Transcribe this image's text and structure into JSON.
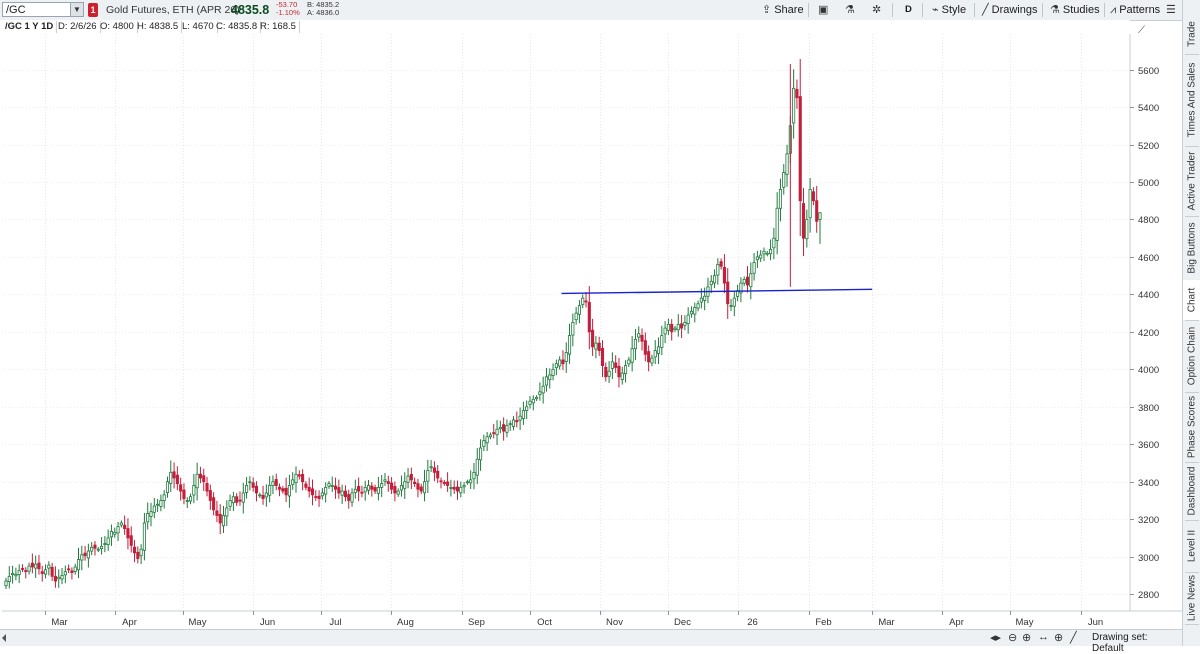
{
  "toolbar": {
    "symbol": "/GC",
    "alert_badge": "1",
    "description": "Gold Futures, ETH (APR 26)",
    "last_price": "4835.8",
    "change_abs": "-53.70",
    "change_pct": "-1.10%",
    "bid": "B: 4835.2",
    "ask": "A: 4836.0",
    "share_label": "Share",
    "aggregation_label": "D",
    "style_label": "Style",
    "drawings_label": "Drawings",
    "studies_label": "Studies",
    "patterns_label": "Patterns"
  },
  "infobar": {
    "title": "/GC 1 Y 1D",
    "date": "D: 2/6/26",
    "open": "O: 4800",
    "high": "H: 4838.5",
    "low": "L: 4670",
    "close": "C: 4835.8",
    "range": "R: 168.5"
  },
  "right_tabs": [
    "Trade",
    "Times And Sales",
    "Active Trader",
    "Big Buttons",
    "Chart",
    "Option Chain",
    "Phase Scores",
    "Dashboard",
    "Level II",
    "Live News"
  ],
  "bottom_bar": {
    "drawing_set": "Drawing set: Default"
  },
  "colors": {
    "up": "#1e7a3c",
    "down": "#c41e3a",
    "trendline": "#1a22cc",
    "grid": "#d9dde2"
  },
  "chart_data": {
    "type": "candlestick",
    "y_ticks": [
      2800,
      3000,
      3200,
      3400,
      3600,
      3800,
      4000,
      4200,
      4400,
      4600,
      4800,
      5000,
      5200,
      5400,
      5600
    ],
    "x_labels": [
      "Mar",
      "Apr",
      "May",
      "Jun",
      "Jul",
      "Aug",
      "Sep",
      "Oct",
      "Nov",
      "Dec",
      "26",
      "Feb",
      "Mar",
      "Apr",
      "May",
      "Jun"
    ],
    "ylim": [
      2710,
      5790
    ],
    "grid": "horizontal and vertical light",
    "trendline": {
      "start": {
        "date": "2025-10-15",
        "price": 4405
      },
      "end": {
        "date": "2026-03-01",
        "price": 4427
      }
    },
    "last_visible_date": "2026-02-06",
    "closes": [
      2870,
      2895,
      2910,
      2905,
      2925,
      2935,
      2920,
      2950,
      2945,
      2960,
      2935,
      2910,
      2930,
      2955,
      2895,
      2870,
      2890,
      2900,
      2920,
      2930,
      2915,
      2945,
      2985,
      3010,
      3005,
      3030,
      3050,
      3045,
      3040,
      3055,
      3070,
      3100,
      3135,
      3130,
      3160,
      3180,
      3150,
      3100,
      3060,
      3020,
      2990,
      3040,
      3180,
      3230,
      3240,
      3270,
      3280,
      3300,
      3330,
      3400,
      3450,
      3420,
      3390,
      3350,
      3310,
      3300,
      3320,
      3380,
      3440,
      3420,
      3400,
      3350,
      3300,
      3250,
      3220,
      3180,
      3220,
      3260,
      3300,
      3320,
      3290,
      3300,
      3340,
      3380,
      3400,
      3370,
      3340,
      3330,
      3310,
      3340,
      3380,
      3400,
      3380,
      3360,
      3350,
      3330,
      3380,
      3410,
      3440,
      3430,
      3400,
      3370,
      3350,
      3330,
      3320,
      3310,
      3340,
      3370,
      3390,
      3380,
      3360,
      3340,
      3350,
      3320,
      3300,
      3340,
      3360,
      3350,
      3340,
      3370,
      3380,
      3360,
      3350,
      3370,
      3390,
      3410,
      3390,
      3360,
      3340,
      3350,
      3380,
      3400,
      3430,
      3410,
      3390,
      3360,
      3350,
      3400,
      3460,
      3480,
      3450,
      3420,
      3400,
      3390,
      3380,
      3370,
      3360,
      3350,
      3370,
      3380,
      3400,
      3410,
      3450,
      3520,
      3580,
      3620,
      3640,
      3650,
      3660,
      3680,
      3690,
      3670,
      3700,
      3710,
      3730,
      3720,
      3750,
      3780,
      3800,
      3830,
      3840,
      3850,
      3880,
      3910,
      3960,
      3970,
      4000,
      4030,
      4050,
      4030,
      4090,
      4180,
      4250,
      4300,
      4340,
      4380,
      4360,
      4200,
      4120,
      4140,
      4100,
      4020,
      3960,
      3990,
      4040,
      4010,
      3960,
      3980,
      4020,
      4050,
      4110,
      4160,
      4190,
      4150,
      4080,
      4040,
      4060,
      4100,
      4120,
      4180,
      4220,
      4240,
      4200,
      4220,
      4240,
      4220,
      4250,
      4290,
      4310,
      4330,
      4350,
      4380,
      4390,
      4440,
      4470,
      4500,
      4560,
      4550,
      4460,
      4350,
      4340,
      4380,
      4420,
      4460,
      4480,
      4450,
      4510,
      4570,
      4600,
      4610,
      4630,
      4620,
      4640,
      4700,
      4860,
      4960,
      5050,
      5150,
      5300,
      5500,
      5450,
      4900,
      4700,
      4800,
      4960,
      4900,
      4790,
      4835.8
    ]
  }
}
